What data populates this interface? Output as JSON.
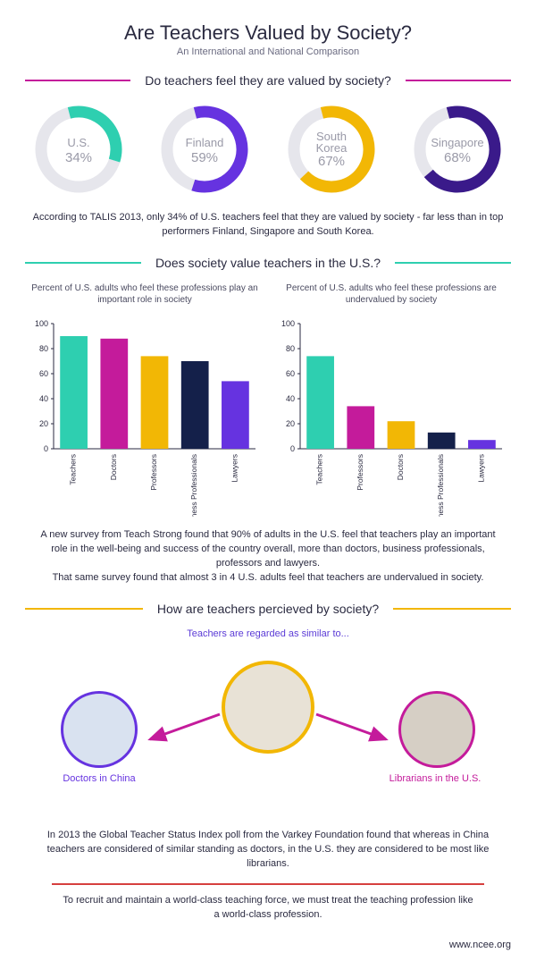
{
  "colors": {
    "teal": "#2ecfb0",
    "purple": "#6633e0",
    "gold": "#f2b705",
    "navy": "#14204a",
    "magenta": "#c41b9b",
    "lightGrey": "#e6e6ec",
    "textGrey": "#9a9aa8",
    "red": "#d6403f"
  },
  "header": {
    "title": "Are Teachers Valued by Society?",
    "subtitle": "An International and National Comparison"
  },
  "section1": {
    "heading": "Do teachers feel they are valued by society?",
    "ruleColor": "#c41b9b",
    "donuts": [
      {
        "label": "U.S.",
        "value": 34,
        "color": "#2ecfb0",
        "track": "#e6e6ec"
      },
      {
        "label": "Finland",
        "value": 59,
        "color": "#6633e0",
        "track": "#e6e6ec"
      },
      {
        "label": "South\nKorea",
        "value": 67,
        "color": "#f2b705",
        "track": "#e6e6ec"
      },
      {
        "label": "Singapore",
        "value": 68,
        "color": "#3a1a8a",
        "track": "#e6e6ec"
      }
    ],
    "body": "According to TALIS 2013, only 34% of U.S. teachers feel that they are valued by society - far less than in top performers Finland, Singapore and South Korea."
  },
  "section2": {
    "heading": "Does society value teachers in the U.S.?",
    "ruleColor": "#2ecfb0",
    "charts": [
      {
        "caption": "Percent of U.S. adults who feel these professions play an important role in society",
        "ylim": [
          0,
          100
        ],
        "ytick": 20,
        "categories": [
          "Teachers",
          "Doctors",
          "Professors",
          "Business Professionals",
          "Lawyers"
        ],
        "values": [
          90,
          88,
          74,
          70,
          54
        ],
        "colors": [
          "#2ecfb0",
          "#c41b9b",
          "#f2b705",
          "#14204a",
          "#6633e0"
        ]
      },
      {
        "caption": "Percent of U.S. adults who feel these professions are undervalued by society",
        "ylim": [
          0,
          100
        ],
        "ytick": 20,
        "categories": [
          "Teachers",
          "Professors",
          "Doctors",
          "Business Professionals",
          "Lawyers"
        ],
        "values": [
          74,
          34,
          22,
          13,
          7
        ],
        "colors": [
          "#2ecfb0",
          "#c41b9b",
          "#f2b705",
          "#14204a",
          "#6633e0"
        ]
      }
    ],
    "body": "A new survey from Teach Strong found that 90% of adults in the U.S. feel that teachers play an important role in the well-being and success of the country overall, more than doctors, business professionals, professors and lawyers.\nThat same survey found that almost 3 in 4 U.S. adults feel that teachers are undervalued in society."
  },
  "section3": {
    "heading": "How are teachers percieved by society?",
    "ruleColor": "#f2b705",
    "intro": "Teachers are regarded as similar to...",
    "left": {
      "label": "Doctors in China",
      "ring": "#6633e0",
      "fill": "#d9e2f0"
    },
    "center": {
      "ring": "#f2b705",
      "fill": "#e8e2d6"
    },
    "right": {
      "label": "Librarians in the U.S.",
      "ring": "#c41b9b",
      "fill": "#d6cfc5"
    },
    "arrowColor": "#c41b9b",
    "body": "In 2013 the Global Teacher Status Index poll from the Varkey Foundation found that whereas in China teachers are considered of similar standing as doctors, in the U.S. they are considered to be most like librarians."
  },
  "closing": {
    "ruleColor": "#d6403f",
    "text": "To recruit and maintain a world-class teaching force, we must treat the teaching profession like a world-class profession.",
    "site": "www.ncee.org"
  }
}
